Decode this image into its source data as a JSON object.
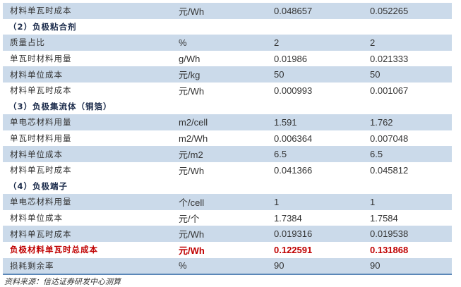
{
  "rows": [
    {
      "type": "data",
      "cells": [
        "材料单瓦时成本",
        "元/Wh",
        "0.048657",
        "0.052265"
      ]
    },
    {
      "type": "header",
      "cells": [
        "（2）负极粘合剂"
      ]
    },
    {
      "type": "data",
      "cells": [
        "质量占比",
        "%",
        "2",
        "2"
      ]
    },
    {
      "type": "data",
      "cells": [
        "单瓦时材料用量",
        "g/Wh",
        "0.01986",
        "0.021333"
      ]
    },
    {
      "type": "data",
      "cells": [
        "材料单位成本",
        "元/kg",
        "50",
        "50"
      ]
    },
    {
      "type": "data",
      "cells": [
        "材料单瓦时成本",
        "元/Wh",
        "0.000993",
        "0.001067"
      ]
    },
    {
      "type": "header",
      "cells": [
        "（3）负极集流体（铜箔）"
      ]
    },
    {
      "type": "data",
      "cells": [
        "单电芯材料用量",
        "m2/cell",
        "1.591",
        "1.762"
      ]
    },
    {
      "type": "data",
      "cells": [
        "单瓦时材料用量",
        "m2/Wh",
        "0.006364",
        "0.007048"
      ]
    },
    {
      "type": "data",
      "cells": [
        "材料单位成本",
        "元/m2",
        "6.5",
        "6.5"
      ]
    },
    {
      "type": "data",
      "cells": [
        "材料单瓦时成本",
        "元/Wh",
        "0.041366",
        "0.045812"
      ]
    },
    {
      "type": "header",
      "cells": [
        "（4）负极端子"
      ]
    },
    {
      "type": "data",
      "cells": [
        "单电芯材料用量",
        "个/cell",
        "1",
        "1"
      ]
    },
    {
      "type": "data",
      "cells": [
        "材料单位成本",
        "元/个",
        "1.7384",
        "1.7584"
      ]
    },
    {
      "type": "data",
      "cells": [
        "材料单瓦时成本",
        "元/Wh",
        "0.019316",
        "0.019538"
      ]
    },
    {
      "type": "total",
      "cells": [
        "负极材料单瓦时总成本",
        "元/Wh",
        "0.122591",
        "0.131868"
      ]
    },
    {
      "type": "data",
      "cells": [
        "损耗剩余率",
        "%",
        "90",
        "90"
      ]
    }
  ],
  "source": "资料来源：信达证券研发中心测算",
  "colors": {
    "shade": "#cbdaea",
    "highlight": "#c00000",
    "rule": "#5b87b8"
  }
}
